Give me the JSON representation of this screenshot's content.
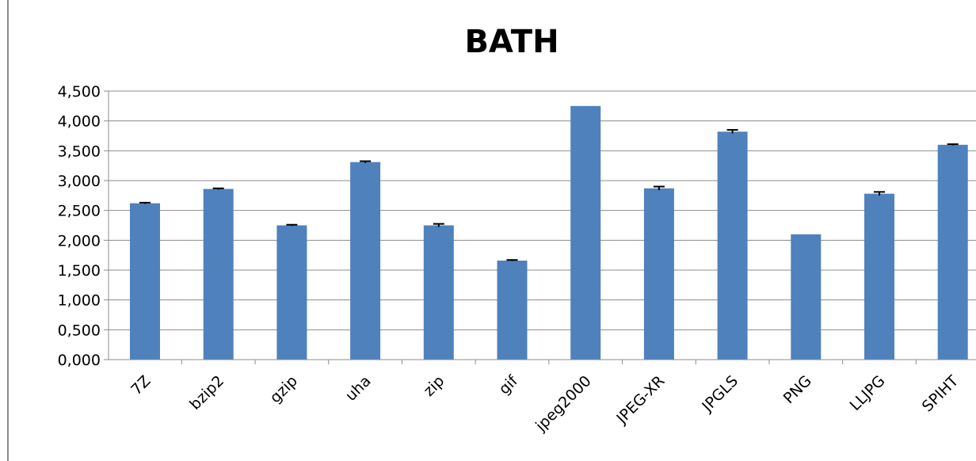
{
  "chart_data": {
    "type": "bar",
    "title": "BATH",
    "xlabel": "",
    "ylabel": "",
    "categories": [
      "7Z",
      "bzip2",
      "gzip",
      "uha",
      "zip",
      "gif",
      "jpeg2000",
      "JPEG-XR",
      "JPGLS",
      "PNG",
      "LLJPG",
      "SPIHT"
    ],
    "values": [
      2.62,
      2.86,
      2.25,
      3.31,
      2.25,
      1.66,
      4.25,
      2.87,
      3.82,
      2.1,
      2.78,
      3.6
    ],
    "errors": [
      0.01,
      0.01,
      0.01,
      0.015,
      0.025,
      0.01,
      0.0,
      0.03,
      0.03,
      0.0,
      0.03,
      0.01
    ],
    "ylim": [
      0,
      4.5
    ],
    "yticks": [
      "0,000",
      "0,500",
      "1,000",
      "1,500",
      "2,000",
      "2,500",
      "3,000",
      "3,500",
      "4,000",
      "4,500"
    ],
    "grid": true,
    "legend": "none",
    "bar_color": "#4f81bd",
    "error_bar_color": "#000000"
  }
}
